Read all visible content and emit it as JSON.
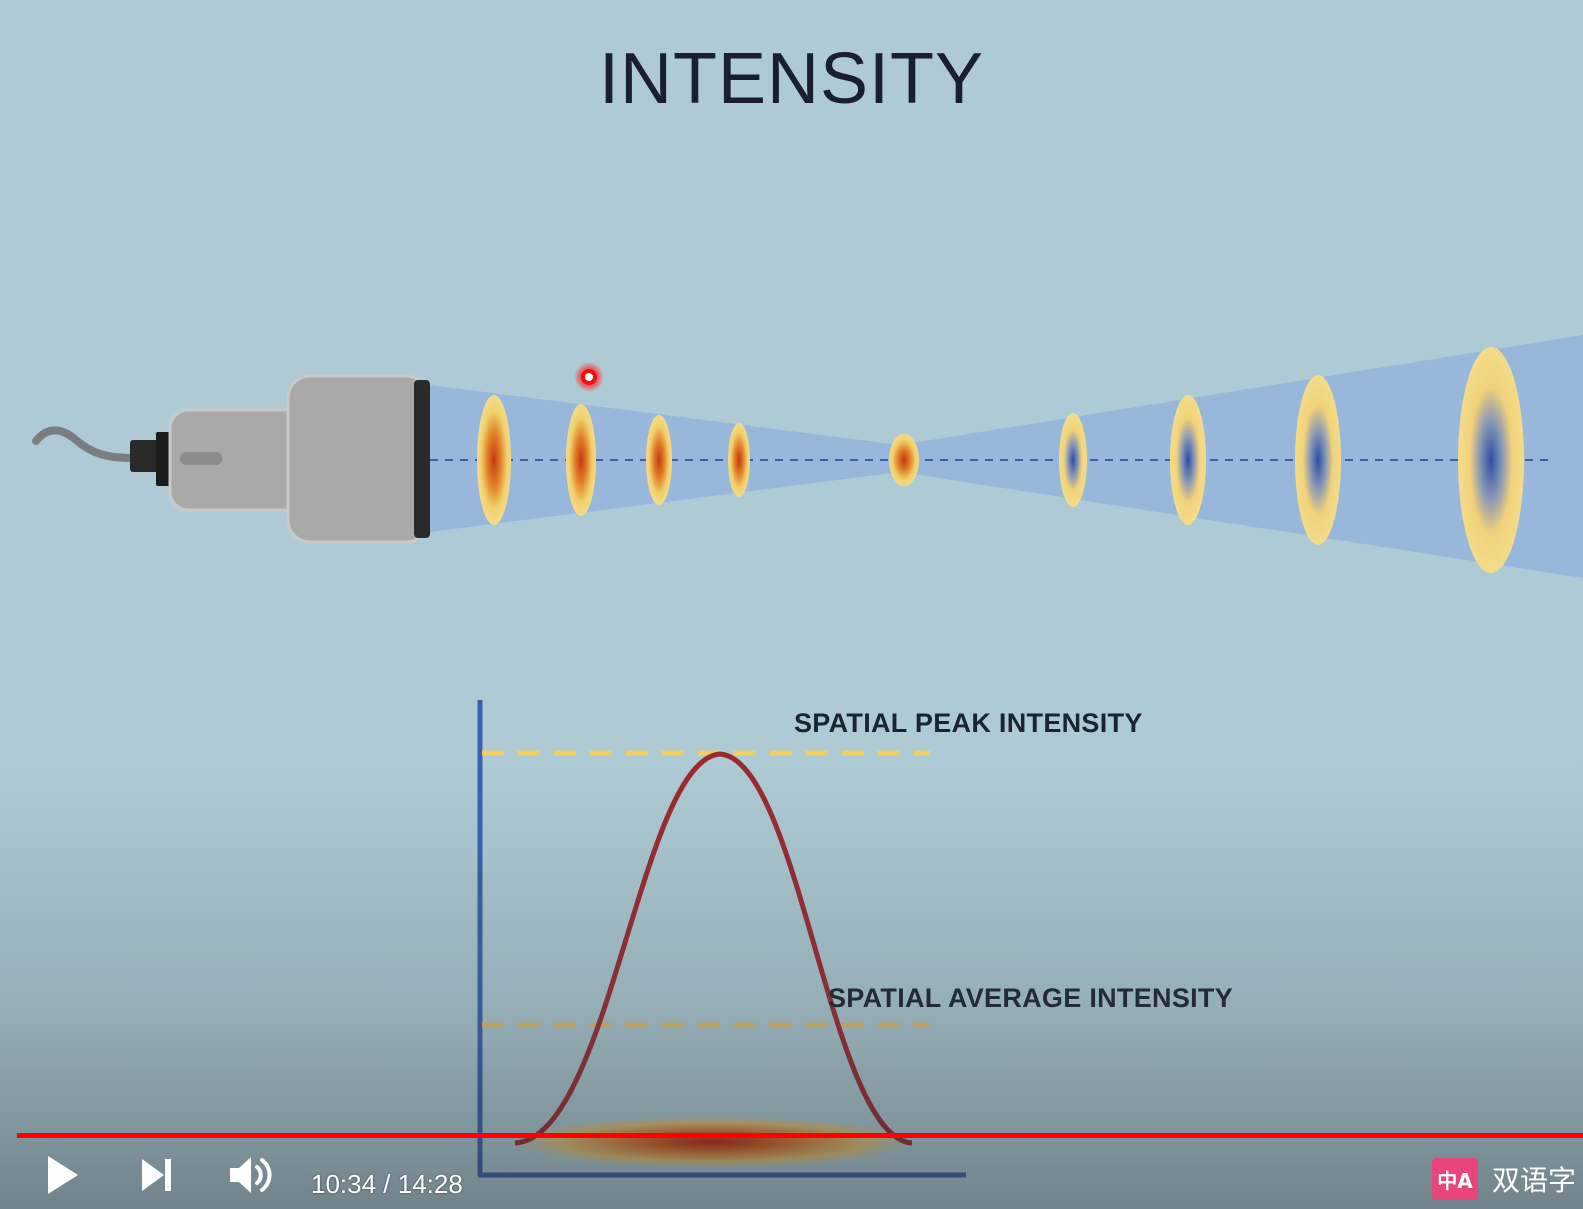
{
  "video": {
    "title": "INTENSITY",
    "labels": {
      "peak": "SPATIAL PEAK INTENSITY",
      "average": "SPATIAL AVERAGE INTENSITY"
    },
    "colors": {
      "background": "#aecbd5",
      "beam": "#8fb0dc",
      "beam_axis": "#3a5fa8",
      "curve": "#9b2a2f",
      "peak_line": "#f2cf63",
      "average_line": "#e0c070",
      "chart_axis": "#3d5fae",
      "progress": "#ff0000"
    },
    "icons": [
      "transducer-probe",
      "cursor-dot"
    ]
  },
  "player": {
    "time": "10:34 / 14:28",
    "progress_fraction": 1.0,
    "bilingual_icon": "中A",
    "bilingual_label": "双语字"
  }
}
